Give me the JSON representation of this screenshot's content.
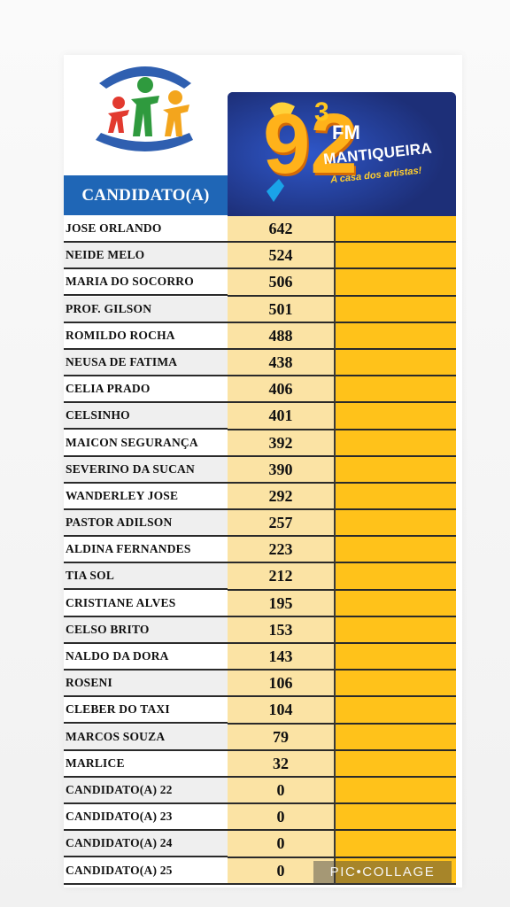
{
  "header": {
    "candidate_label": "CANDIDATO(A)"
  },
  "radio": {
    "number_main": "92",
    "number_sup": "3",
    "fm": "FM",
    "name": "MANTIQUEIRA",
    "tagline": "A casa dos artistas!"
  },
  "watermark": "PIC•COLLAGE",
  "colors": {
    "header_blue": "#1f66b6",
    "banner_navy": "#223b8a",
    "votes_bg": "#fbe3a4",
    "pct_bg": "#ffc21a"
  },
  "candidates": [
    {
      "name": "JOSE ORLANDO",
      "votes": "642"
    },
    {
      "name": "NEIDE MELO",
      "votes": "524"
    },
    {
      "name": "MARIA DO SOCORRO",
      "votes": "506"
    },
    {
      "name": "PROF. GILSON",
      "votes": "501"
    },
    {
      "name": "ROMILDO ROCHA",
      "votes": "488"
    },
    {
      "name": "NEUSA DE FATIMA",
      "votes": "438"
    },
    {
      "name": "CELIA PRADO",
      "votes": "406"
    },
    {
      "name": "CELSINHO",
      "votes": "401"
    },
    {
      "name": "MAICON SEGURANÇA",
      "votes": "392"
    },
    {
      "name": "SEVERINO DA SUCAN",
      "votes": "390"
    },
    {
      "name": "WANDERLEY JOSE",
      "votes": "292"
    },
    {
      "name": "PASTOR ADILSON",
      "votes": "257"
    },
    {
      "name": "ALDINA FERNANDES",
      "votes": "223"
    },
    {
      "name": "TIA SOL",
      "votes": "212"
    },
    {
      "name": "CRISTIANE ALVES",
      "votes": "195"
    },
    {
      "name": "CELSO BRITO",
      "votes": "153"
    },
    {
      "name": "NALDO DA DORA",
      "votes": "143"
    },
    {
      "name": "ROSENI",
      "votes": "106"
    },
    {
      "name": "CLEBER DO TAXI",
      "votes": "104"
    },
    {
      "name": "MARCOS SOUZA",
      "votes": "79"
    },
    {
      "name": "MARLICE",
      "votes": "32"
    },
    {
      "name": "CANDIDATO(A) 22",
      "votes": "0"
    },
    {
      "name": "CANDIDATO(A) 23",
      "votes": "0"
    },
    {
      "name": "CANDIDATO(A) 24",
      "votes": "0"
    },
    {
      "name": "CANDIDATO(A) 25",
      "votes": "0"
    }
  ]
}
